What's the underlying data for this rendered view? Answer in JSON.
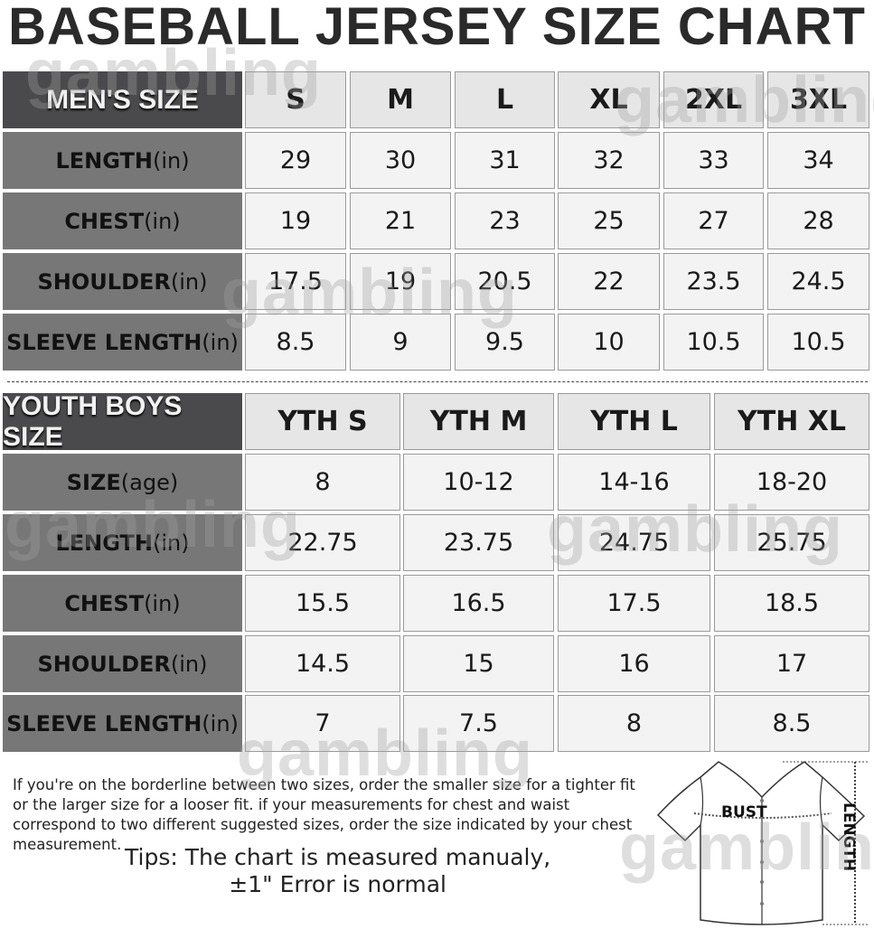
{
  "title": "BASEBALL JERSEY SIZE CHART",
  "watermark": "gambling",
  "mens": {
    "corner": "MEN'S SIZE",
    "sizes": [
      "S",
      "M",
      "L",
      "XL",
      "2XL",
      "3XL"
    ],
    "rows": [
      {
        "label": "LENGTH",
        "unit": "(in)",
        "values": [
          "29",
          "30",
          "31",
          "32",
          "33",
          "34"
        ]
      },
      {
        "label": "CHEST",
        "unit": "(in)",
        "values": [
          "19",
          "21",
          "23",
          "25",
          "27",
          "28"
        ]
      },
      {
        "label": "SHOULDER",
        "unit": "(in)",
        "values": [
          "17.5",
          "19",
          "20.5",
          "22",
          "23.5",
          "24.5"
        ]
      },
      {
        "label": "SLEEVE LENGTH",
        "unit": "(in)",
        "values": [
          "8.5",
          "9",
          "9.5",
          "10",
          "10.5",
          "10.5"
        ]
      }
    ]
  },
  "youth": {
    "corner": "YOUTH BOYS SIZE",
    "sizes": [
      "YTH S",
      "YTH M",
      "YTH L",
      "YTH XL"
    ],
    "rows": [
      {
        "label": "SIZE",
        "unit": "(age)",
        "values": [
          "8",
          "10-12",
          "14-16",
          "18-20"
        ]
      },
      {
        "label": "LENGTH",
        "unit": "(in)",
        "values": [
          "22.75",
          "23.75",
          "24.75",
          "25.75"
        ]
      },
      {
        "label": "CHEST",
        "unit": "(in)",
        "values": [
          "15.5",
          "16.5",
          "17.5",
          "18.5"
        ]
      },
      {
        "label": "SHOULDER",
        "unit": "(in)",
        "values": [
          "14.5",
          "15",
          "16",
          "17"
        ]
      },
      {
        "label": "SLEEVE LENGTH",
        "unit": "(in)",
        "values": [
          "7",
          "7.5",
          "8",
          "8.5"
        ]
      }
    ]
  },
  "note": "If you're on the borderline between two sizes, order the smaller size for a tighter fit or the larger size for a looser fit. if your measurements for chest and waist correspond to two different suggested sizes, order the size indicated by your chest measurement.",
  "tips": {
    "line1": "Tips: The chart is measured manualy,",
    "line2": "±1\" Error is normal"
  },
  "diagram": {
    "bust": "BUST",
    "length": "LENGTH"
  }
}
